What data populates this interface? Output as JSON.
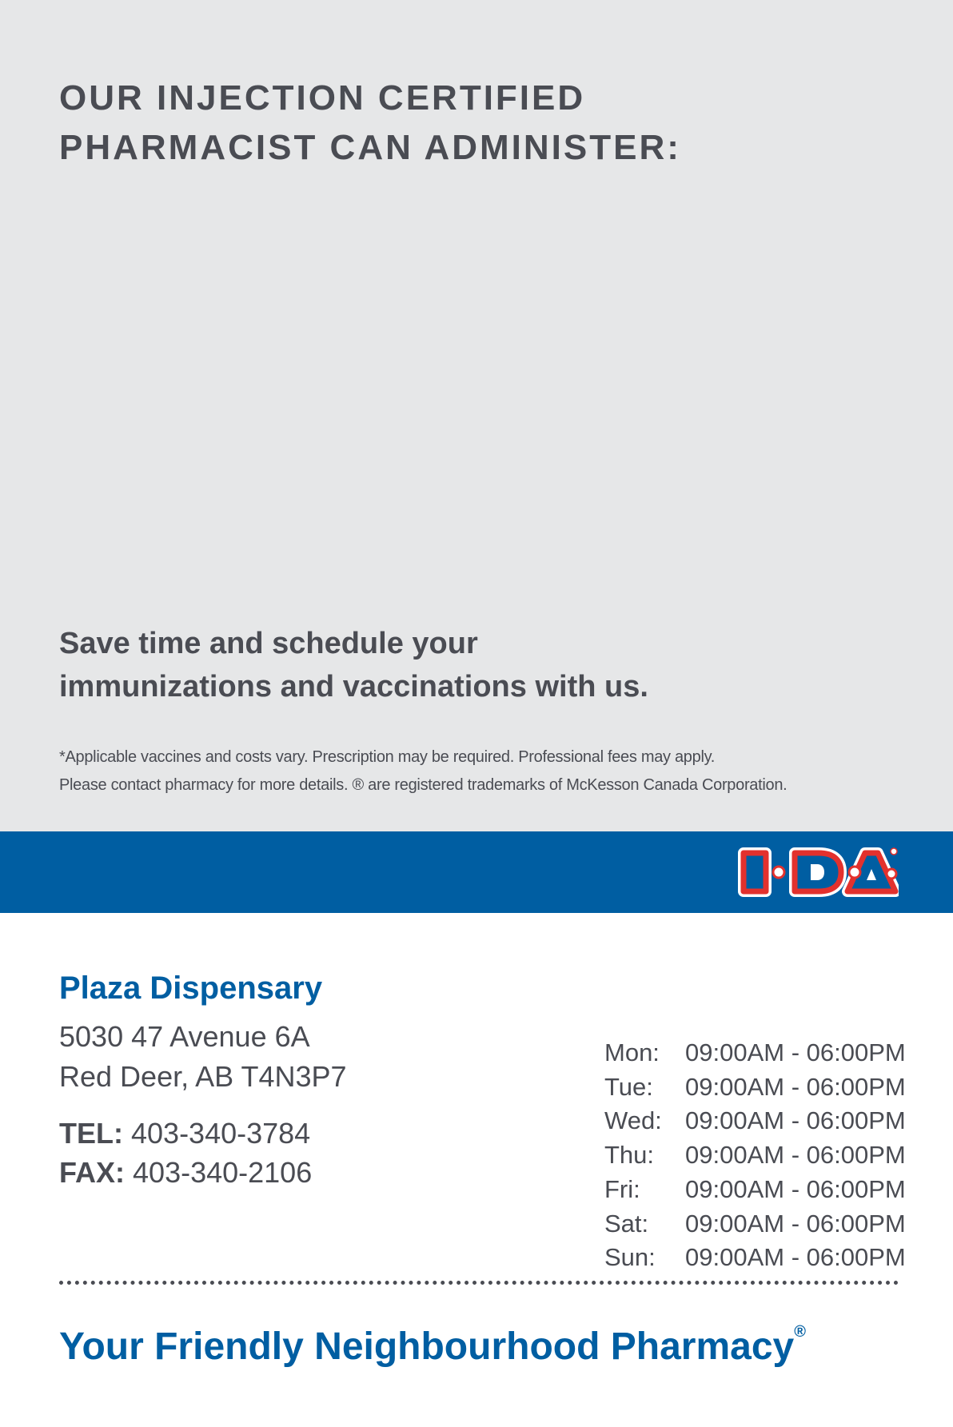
{
  "heading": {
    "line1": "OUR INJECTION CERTIFIED",
    "line2": "PHARMACIST CAN ADMINISTER:"
  },
  "promo": {
    "line1": "Save time and schedule your",
    "line2": "immunizations and vaccinations with us."
  },
  "disclaimer": {
    "line1": "*Applicable vaccines and costs vary. Prescription may be required. Professional fees may apply.",
    "line2": "Please contact pharmacy for more details. ® are registered trademarks of McKesson Canada Corporation."
  },
  "logo": {
    "text": "I·D·A",
    "colors": {
      "red": "#e3312d",
      "blue": "#005ea2"
    }
  },
  "store": {
    "name": "Plaza Dispensary",
    "address1": "5030 47 Avenue 6A",
    "address2": "Red Deer, AB T4N3P7",
    "tel_label": "TEL:",
    "tel": "403-340-3784",
    "fax_label": "FAX:",
    "fax": "403-340-2106"
  },
  "hours": [
    {
      "day": "Mon:",
      "time": "09:00AM - 06:00PM"
    },
    {
      "day": "Tue:",
      "time": "09:00AM - 06:00PM"
    },
    {
      "day": "Wed:",
      "time": "09:00AM - 06:00PM"
    },
    {
      "day": "Thu:",
      "time": "09:00AM - 06:00PM"
    },
    {
      "day": "Fri:",
      "time": "09:00AM - 06:00PM"
    },
    {
      "day": "Sat:",
      "time": "09:00AM - 06:00PM"
    },
    {
      "day": "Sun:",
      "time": "09:00AM - 06:00PM"
    }
  ],
  "tagline": {
    "text": "Your Friendly Neighbourhood Pharmacy",
    "mark": "®"
  },
  "colors": {
    "brand_blue": "#005ea2",
    "panel_gray": "#e6e7e8",
    "text_gray": "#4a4c53"
  }
}
